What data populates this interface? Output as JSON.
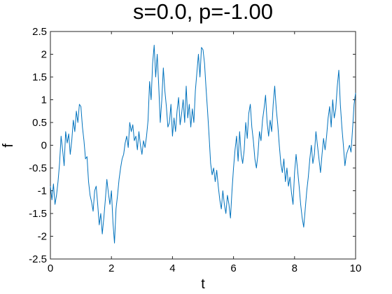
{
  "chart_data": {
    "type": "line",
    "title": "s=0.0, p=-1.00",
    "xlabel": "t",
    "ylabel": "f",
    "xlim": [
      0,
      10
    ],
    "ylim": [
      -2.5,
      2.5
    ],
    "x_ticks": [
      0,
      2,
      4,
      6,
      8,
      10
    ],
    "x_tick_labels": [
      "0",
      "2",
      "4",
      "6",
      "8",
      "10"
    ],
    "y_ticks": [
      2.5,
      2,
      1.5,
      1,
      0.5,
      0,
      -0.5,
      -1,
      -1.5,
      -2,
      -2.5
    ],
    "y_tick_labels": [
      "2.5",
      "2",
      "1.5",
      "1",
      "0.5",
      "0",
      "-0.5",
      "-1",
      "-1.5",
      "-2",
      "-2.5"
    ],
    "grid": false,
    "legend": "none",
    "color": "#0072bd",
    "series": [
      {
        "x": [
          0,
          0.05,
          0.1,
          0.15,
          0.2,
          0.25,
          0.3,
          0.35,
          0.4,
          0.45,
          0.5,
          0.55,
          0.6,
          0.65,
          0.7,
          0.75,
          0.8,
          0.85,
          0.9,
          0.95,
          1,
          1.05,
          1.1,
          1.15,
          1.2,
          1.25,
          1.3,
          1.35,
          1.4,
          1.45,
          1.5,
          1.55,
          1.6,
          1.65,
          1.7,
          1.75,
          1.8,
          1.85,
          1.9,
          1.95,
          2,
          2.05,
          2.1,
          2.15,
          2.2,
          2.25,
          2.3,
          2.35,
          2.4,
          2.45,
          2.5,
          2.55,
          2.6,
          2.65,
          2.7,
          2.75,
          2.8,
          2.85,
          2.9,
          2.95,
          3,
          3.05,
          3.1,
          3.15,
          3.2,
          3.25,
          3.3,
          3.35,
          3.4,
          3.45,
          3.5,
          3.55,
          3.6,
          3.65,
          3.7,
          3.75,
          3.8,
          3.85,
          3.9,
          3.95,
          4,
          4.05,
          4.1,
          4.15,
          4.2,
          4.25,
          4.3,
          4.35,
          4.4,
          4.45,
          4.5,
          4.55,
          4.6,
          4.65,
          4.7,
          4.75,
          4.8,
          4.85,
          4.9,
          4.95,
          5,
          5.05,
          5.1,
          5.15,
          5.2,
          5.25,
          5.3,
          5.35,
          5.4,
          5.45,
          5.5,
          5.55,
          5.6,
          5.65,
          5.7,
          5.75,
          5.8,
          5.85,
          5.9,
          5.95,
          6,
          6.05,
          6.1,
          6.15,
          6.2,
          6.25,
          6.3,
          6.35,
          6.4,
          6.45,
          6.5,
          6.55,
          6.6,
          6.65,
          6.7,
          6.75,
          6.8,
          6.85,
          6.9,
          6.95,
          7,
          7.05,
          7.1,
          7.15,
          7.2,
          7.25,
          7.3,
          7.35,
          7.4,
          7.45,
          7.5,
          7.55,
          7.6,
          7.65,
          7.7,
          7.75,
          7.8,
          7.85,
          7.9,
          7.95,
          8,
          8.05,
          8.1,
          8.15,
          8.2,
          8.25,
          8.3,
          8.35,
          8.4,
          8.45,
          8.5,
          8.55,
          8.6,
          8.65,
          8.7,
          8.75,
          8.8,
          8.85,
          8.9,
          8.95,
          9,
          9.05,
          9.1,
          9.15,
          9.2,
          9.25,
          9.3,
          9.35,
          9.4,
          9.45,
          9.5,
          9.55,
          9.6,
          9.65,
          9.7,
          9.75,
          9.8,
          9.85,
          9.9,
          9.95,
          10
        ],
        "y": [
          -0.9,
          -1.2,
          -0.85,
          -1.3,
          -1.1,
          -0.8,
          -0.4,
          0.2,
          -0.1,
          -0.45,
          0.3,
          0.05,
          0.25,
          -0.2,
          0.1,
          0.55,
          0.3,
          0.75,
          0.5,
          0.9,
          0.85,
          0.4,
          0.1,
          -0.3,
          -0.25,
          -0.8,
          -1.1,
          -1.25,
          -1.45,
          -1.0,
          -0.9,
          -1.3,
          -1.75,
          -1.5,
          -1.95,
          -1.6,
          -1.2,
          -0.75,
          -1.05,
          -1.3,
          -1.0,
          -1.7,
          -2.15,
          -1.4,
          -1.1,
          -0.75,
          -0.5,
          -0.3,
          -0.2,
          0.05,
          0.2,
          -0.05,
          0.5,
          0.3,
          0.45,
          0.1,
          0.2,
          -0.1,
          0.3,
          0.0,
          -0.2,
          0.1,
          -0.05,
          0.2,
          0.55,
          1.4,
          1.0,
          1.8,
          2.2,
          1.5,
          2.0,
          1.3,
          0.5,
          1.0,
          1.7,
          1.2,
          0.85,
          0.4,
          0.5,
          0.9,
          0.2,
          0.6,
          0.3,
          0.75,
          1.05,
          0.45,
          0.7,
          1.0,
          0.5,
          1.3,
          0.6,
          0.9,
          0.4,
          0.8,
          0.5,
          1.2,
          1.6,
          2.0,
          1.5,
          2.15,
          2.1,
          1.8,
          1.25,
          0.75,
          0.2,
          -0.4,
          -0.65,
          -0.5,
          -0.8,
          -0.55,
          -0.9,
          -1.2,
          -1.4,
          -1.0,
          -1.3,
          -1.5,
          -1.1,
          -1.3,
          -1.6,
          -1.0,
          -0.5,
          -0.1,
          0.2,
          -0.35,
          0.3,
          -0.2,
          -0.4,
          -0.1,
          0.5,
          0.15,
          0.7,
          0.9,
          0.4,
          0.1,
          -0.3,
          -0.5,
          -0.2,
          0.3,
          0.1,
          0.55,
          0.8,
          1.1,
          0.5,
          0.2,
          0.55,
          0.3,
          0.9,
          1.3,
          0.8,
          0.45,
          0.0,
          -0.4,
          -0.6,
          -0.3,
          -0.8,
          -0.5,
          -0.9,
          -0.7,
          -1.05,
          -1.3,
          -0.6,
          -0.2,
          -0.55,
          -0.9,
          -1.3,
          -1.6,
          -1.8,
          -1.4,
          -1.0,
          -0.7,
          -0.3,
          0.0,
          -0.4,
          -0.2,
          0.3,
          0.0,
          -0.3,
          -0.6,
          -0.2,
          0.15,
          -0.1,
          0.2,
          0.6,
          0.85,
          0.4,
          1.0,
          0.6,
          0.8,
          1.3,
          1.65,
          0.9,
          0.4,
          0.0,
          -0.45,
          -0.2,
          -0.1,
          0.0,
          -0.15,
          0.35,
          0.9,
          1.15
        ]
      }
    ]
  }
}
